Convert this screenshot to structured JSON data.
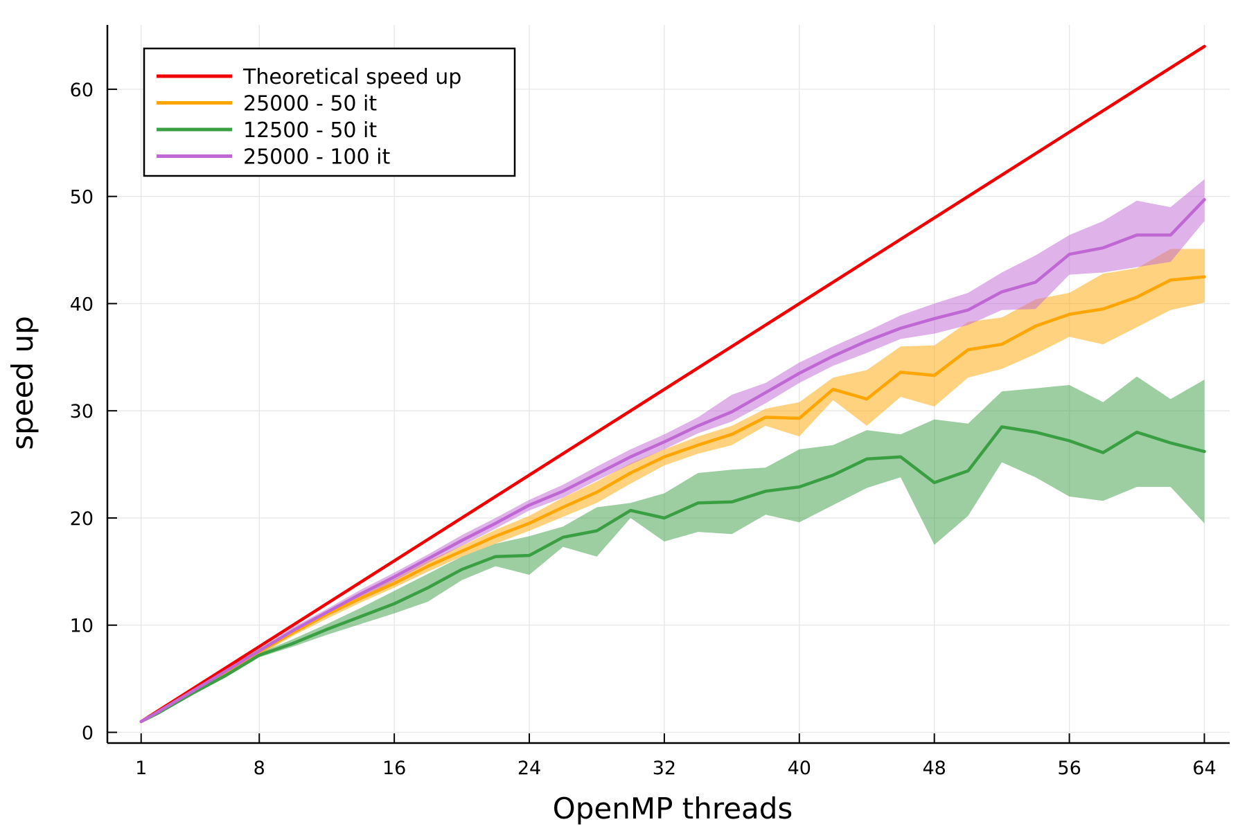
{
  "chart_data": {
    "type": "line",
    "title": "",
    "xlabel": "OpenMP threads",
    "ylabel": "speed up",
    "xlim": [
      -1,
      65.5
    ],
    "ylim": [
      -1,
      66
    ],
    "xticks": [
      1,
      8,
      16,
      24,
      32,
      40,
      48,
      56,
      64
    ],
    "yticks": [
      0,
      10,
      20,
      30,
      40,
      50,
      60
    ],
    "grid": true,
    "legend": "top-left",
    "series": [
      {
        "name": "Theoretical speed up",
        "color": "#f00000",
        "x": [
          1,
          64
        ],
        "y": [
          1,
          64
        ]
      },
      {
        "name": "25000 - 50 it",
        "color": "#ffa500",
        "x": [
          1,
          2,
          4,
          6,
          8,
          10,
          12,
          14,
          16,
          18,
          20,
          22,
          24,
          26,
          28,
          30,
          32,
          34,
          36,
          38,
          40,
          42,
          44,
          46,
          48,
          50,
          52,
          54,
          56,
          58,
          60,
          62,
          64
        ],
        "y": [
          1,
          1.9,
          3.8,
          5.6,
          7.5,
          9.3,
          11.0,
          12.5,
          13.9,
          15.5,
          16.9,
          18.3,
          19.5,
          21.0,
          22.4,
          24.2,
          25.7,
          26.8,
          27.8,
          29.4,
          29.3,
          32.0,
          31.1,
          33.6,
          33.3,
          35.7,
          36.2,
          37.9,
          39.0,
          39.5,
          40.6,
          42.2,
          42.5
        ],
        "lower": [
          1,
          1.8,
          3.6,
          5.4,
          7.2,
          9.0,
          10.6,
          12.1,
          13.5,
          15.0,
          16.4,
          17.6,
          18.8,
          20.1,
          21.4,
          23.2,
          24.9,
          26.0,
          26.8,
          28.6,
          27.6,
          31.0,
          28.6,
          31.3,
          30.4,
          33.1,
          33.9,
          35.3,
          36.9,
          36.2,
          37.8,
          39.4,
          40.1
        ],
        "upper": [
          1,
          2.0,
          4.0,
          5.8,
          7.8,
          9.6,
          11.3,
          12.9,
          14.3,
          16.0,
          17.4,
          18.9,
          20.2,
          21.9,
          23.4,
          25.1,
          26.4,
          27.6,
          28.6,
          30.2,
          30.8,
          33.1,
          33.8,
          36.0,
          36.1,
          38.3,
          38.7,
          40.4,
          41.0,
          42.8,
          43.3,
          45.1,
          45.1
        ]
      },
      {
        "name": "12500 - 50 it",
        "color": "#3a9e43",
        "x": [
          1,
          2,
          4,
          6,
          8,
          10,
          12,
          14,
          16,
          18,
          20,
          22,
          24,
          26,
          28,
          30,
          32,
          34,
          36,
          38,
          40,
          42,
          44,
          46,
          48,
          50,
          52,
          54,
          56,
          58,
          60,
          62,
          64
        ],
        "y": [
          1,
          1.8,
          3.6,
          5.3,
          7.2,
          8.3,
          9.6,
          10.8,
          12.0,
          13.5,
          15.2,
          16.4,
          16.5,
          18.2,
          18.8,
          20.7,
          20.0,
          21.4,
          21.5,
          22.5,
          22.9,
          24.0,
          25.5,
          25.7,
          23.3,
          24.4,
          28.5,
          28.0,
          27.2,
          26.1,
          28.0,
          27.0,
          26.2
        ],
        "lower": [
          1,
          1.7,
          3.5,
          5.1,
          7.0,
          8.0,
          9.1,
          10.1,
          11.1,
          12.2,
          14.2,
          15.5,
          14.7,
          17.3,
          16.4,
          20.0,
          17.8,
          18.7,
          18.5,
          20.3,
          19.6,
          21.2,
          22.8,
          23.8,
          17.5,
          20.2,
          25.2,
          23.8,
          22.0,
          21.6,
          22.9,
          22.9,
          19.5
        ],
        "upper": [
          1,
          1.9,
          3.7,
          5.5,
          7.4,
          8.7,
          10.1,
          11.6,
          13.2,
          14.8,
          16.4,
          17.6,
          18.3,
          19.2,
          21.0,
          21.4,
          22.3,
          24.2,
          24.5,
          24.7,
          26.4,
          26.8,
          28.2,
          27.8,
          29.2,
          28.8,
          31.8,
          32.1,
          32.4,
          30.8,
          33.2,
          31.1,
          32.9
        ]
      },
      {
        "name": "25000 - 100 it",
        "color": "#bf68d4",
        "x": [
          1,
          2,
          4,
          6,
          8,
          10,
          12,
          14,
          16,
          18,
          20,
          22,
          24,
          26,
          28,
          30,
          32,
          34,
          36,
          38,
          40,
          42,
          44,
          46,
          48,
          50,
          52,
          54,
          56,
          58,
          60,
          62,
          64
        ],
        "y": [
          1,
          1.9,
          3.8,
          5.7,
          7.6,
          9.5,
          11.2,
          12.9,
          14.5,
          16.2,
          17.9,
          19.5,
          21.2,
          22.5,
          24.1,
          25.7,
          27.1,
          28.6,
          29.9,
          31.7,
          33.5,
          35.1,
          36.5,
          37.7,
          38.6,
          39.4,
          41.1,
          42.0,
          44.6,
          45.2,
          46.4,
          46.4,
          49.7
        ],
        "lower": [
          1,
          1.8,
          3.7,
          5.5,
          7.4,
          9.2,
          10.9,
          12.5,
          14.1,
          15.8,
          17.4,
          19.0,
          20.7,
          21.9,
          23.5,
          25.0,
          26.4,
          27.9,
          29.0,
          30.7,
          32.6,
          34.2,
          35.4,
          36.7,
          37.2,
          38.0,
          39.4,
          39.5,
          42.7,
          42.9,
          43.4,
          43.9,
          47.7
        ],
        "upper": [
          1,
          2.0,
          3.9,
          5.9,
          7.8,
          9.8,
          11.5,
          13.3,
          14.9,
          16.6,
          18.4,
          20.0,
          21.7,
          23.1,
          24.8,
          26.4,
          27.8,
          29.4,
          31.5,
          32.6,
          34.5,
          36.0,
          37.4,
          38.9,
          40.0,
          41.0,
          42.9,
          44.5,
          46.4,
          47.7,
          49.6,
          49.0,
          51.6
        ]
      }
    ]
  }
}
